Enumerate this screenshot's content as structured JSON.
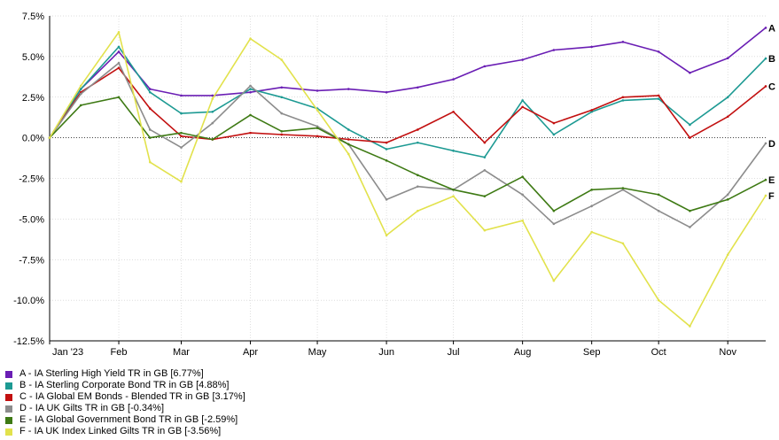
{
  "chart_data": {
    "type": "line",
    "title": "",
    "xlabel": "",
    "ylabel": "",
    "ylim": [
      -12.5,
      7.5
    ],
    "y_ticks": [
      "7.5%",
      "5.0%",
      "2.5%",
      "0.0%",
      "-2.5%",
      "-5.0%",
      "-7.5%",
      "-10.0%",
      "-12.5%"
    ],
    "x_ticks": [
      "Jan '23",
      "Feb",
      "Mar",
      "Apr",
      "May",
      "Jun",
      "Jul",
      "Aug",
      "Sep",
      "Oct",
      "Nov"
    ],
    "x": [
      "2023-01-01",
      "2023-01-15",
      "2023-02-01",
      "2023-02-15",
      "2023-03-01",
      "2023-03-15",
      "2023-04-01",
      "2023-04-15",
      "2023-05-01",
      "2023-05-15",
      "2023-06-01",
      "2023-06-15",
      "2023-07-01",
      "2023-07-15",
      "2023-08-01",
      "2023-08-15",
      "2023-09-01",
      "2023-09-15",
      "2023-10-01",
      "2023-10-15",
      "2023-11-01",
      "2023-11-18"
    ],
    "grid": true,
    "legend_position": "bottom-left",
    "series": [
      {
        "name": "A - IA Sterling High Yield TR in GB [6.77%]",
        "end_label": "A",
        "color": "#6a1eb4",
        "values": [
          0,
          3.0,
          5.3,
          3.0,
          2.6,
          2.6,
          2.8,
          3.1,
          2.9,
          3.0,
          2.8,
          3.1,
          3.6,
          4.4,
          4.8,
          5.4,
          5.6,
          5.9,
          5.3,
          4.0,
          4.9,
          6.77
        ]
      },
      {
        "name": "B - IA Sterling Corporate Bond TR in GB [4.88%]",
        "end_label": "B",
        "color": "#1d9a93",
        "values": [
          0,
          3.0,
          5.6,
          2.8,
          1.5,
          1.6,
          3.0,
          2.5,
          1.8,
          0.5,
          -0.7,
          -0.3,
          -0.8,
          -1.2,
          2.3,
          0.2,
          1.6,
          2.3,
          2.4,
          0.8,
          2.5,
          4.88
        ]
      },
      {
        "name": "C - IA Global EM Bonds - Blended TR in GB [3.17%]",
        "end_label": "C",
        "color": "#c21010",
        "values": [
          0,
          2.8,
          4.3,
          1.8,
          0.1,
          -0.1,
          0.3,
          0.2,
          0.1,
          -0.1,
          -0.3,
          0.5,
          1.6,
          -0.3,
          1.9,
          0.9,
          1.7,
          2.5,
          2.6,
          0.0,
          1.3,
          3.17
        ]
      },
      {
        "name": "D - IA UK Gilts TR in GB [-0.34%]",
        "end_label": "D",
        "color": "#8c8c8c",
        "values": [
          0,
          2.7,
          4.6,
          0.5,
          -0.6,
          0.9,
          3.2,
          1.5,
          0.7,
          -0.4,
          -3.8,
          -3.0,
          -3.2,
          -2.0,
          -3.5,
          -5.3,
          -4.2,
          -3.2,
          -4.5,
          -5.5,
          -3.5,
          -0.34
        ]
      },
      {
        "name": "E - IA Global Government Bond TR in GB [-2.59%]",
        "end_label": "E",
        "color": "#3e7a14",
        "values": [
          0,
          2.0,
          2.5,
          0.0,
          0.3,
          -0.1,
          1.4,
          0.4,
          0.6,
          -0.4,
          -1.4,
          -2.3,
          -3.2,
          -3.6,
          -2.4,
          -4.5,
          -3.2,
          -3.1,
          -3.5,
          -4.5,
          -3.8,
          -2.59
        ]
      },
      {
        "name": "F - IA UK Index Linked Gilts TR in GB [-3.56%]",
        "end_label": "F",
        "color": "#e2e24c",
        "values": [
          0,
          3.2,
          6.5,
          -1.5,
          -2.7,
          2.4,
          6.1,
          4.8,
          1.7,
          -1.0,
          -6.0,
          -4.5,
          -3.6,
          -5.7,
          -5.1,
          -8.8,
          -5.8,
          -6.5,
          -10.0,
          -11.6,
          -7.2,
          -3.56
        ]
      }
    ]
  }
}
